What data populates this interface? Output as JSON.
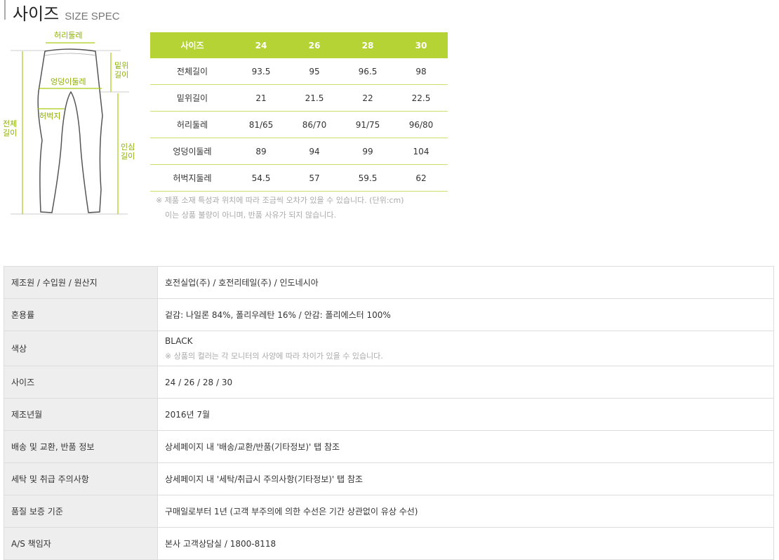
{
  "title": {
    "ko": "사이즈",
    "en": "SIZE SPEC"
  },
  "diagram": {
    "waist": "허리둘레",
    "rise": "밑위\n길이",
    "hip": "엉덩이둘레",
    "thigh": "허벅지",
    "total": "전체\n길이",
    "inseam": "인심\n길이"
  },
  "spec": {
    "header": [
      "사이즈",
      "24",
      "26",
      "28",
      "30"
    ],
    "rows": [
      [
        "전체길이",
        "93.5",
        "95",
        "96.5",
        "98"
      ],
      [
        "밑위길이",
        "21",
        "21.5",
        "22",
        "22.5"
      ],
      [
        "허리둘레",
        "81/65",
        "86/70",
        "91/75",
        "96/80"
      ],
      [
        "엉덩이둘레",
        "89",
        "94",
        "99",
        "104"
      ],
      [
        "허벅지둘레",
        "54.5",
        "57",
        "59.5",
        "62"
      ]
    ]
  },
  "note": {
    "line1": "※ 제품 소재 특성과 위치에 따라 조금씩 오차가 있을 수 있습니다. (단위:cm)",
    "line2": "이는 상품 불량이 아니며, 반품 사유가 되지 않습니다."
  },
  "info": [
    {
      "k": "제조원 / 수입원 / 원산지",
      "v": "호전실업(주) / 호전리테일(주) / 인도네시아"
    },
    {
      "k": "혼용률",
      "v": "겉감: 나일론 84%, 폴리우레탄 16% / 안감: 폴리에스터 100%"
    },
    {
      "k": "색상",
      "v": "BLACK",
      "sub": "※ 상품의 컬러는 각 모니터의 사양에 따라 차이가 있을 수 있습니다."
    },
    {
      "k": "사이즈",
      "v": "24 / 26 / 28 / 30"
    },
    {
      "k": "제조년월",
      "v": "2016년 7월"
    },
    {
      "k": "배송 및 교환, 반품 정보",
      "v": "상세페이지 내 '배송/교환/반품(기타정보)' 탭 참조"
    },
    {
      "k": "세탁 및 취급 주의사항",
      "v": "상세페이지 내 '세탁/취급시 주의사항(기타정보)' 탭 참조"
    },
    {
      "k": "품질 보증 기준",
      "v": "구매일로부터 1년 (고객 부주의에 의한 수선은 기간 상관없이 유상 수선)"
    },
    {
      "k": "A/S 책임자",
      "v": "본사 고객상담실 / 1800-8118"
    }
  ],
  "colors": {
    "accent": "#b5d334"
  }
}
